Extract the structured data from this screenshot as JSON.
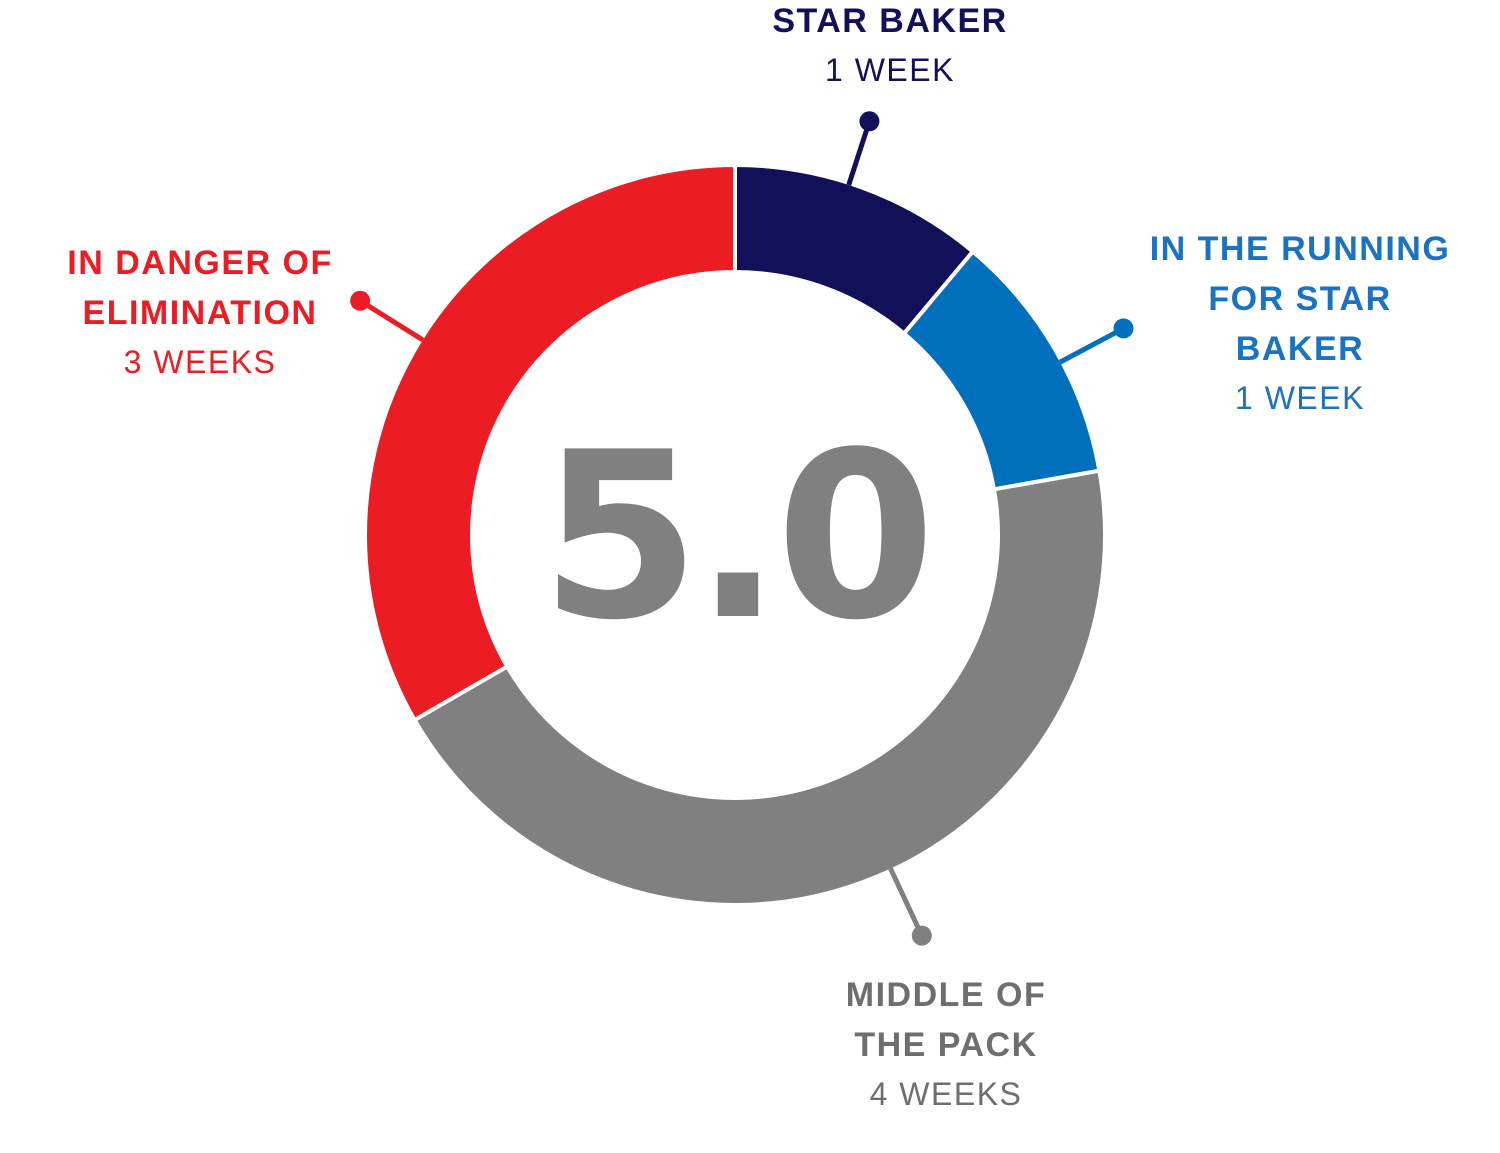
{
  "center": {
    "score": "5.0",
    "color": "#808080"
  },
  "chart_data": {
    "type": "pie",
    "variant": "donut",
    "total_weeks": 9,
    "categories": [
      "STAR BAKER",
      "IN THE RUNNING FOR STAR BAKER",
      "MIDDLE OF THE PACK",
      "IN DANGER OF ELIMINATION"
    ],
    "values": [
      1,
      1,
      4,
      3
    ],
    "value_labels": [
      "1 WEEK",
      "1 WEEK",
      "4 WEEKS",
      "3 WEEKS"
    ],
    "colors": [
      "#13105a",
      "#0070bd",
      "#808080",
      "#ec1c24"
    ]
  },
  "labels": {
    "star_baker": {
      "name": "STAR BAKER",
      "weeks": "1 WEEK"
    },
    "in_the_running": {
      "name_line1": "IN THE RUNNING",
      "name_line2": "FOR STAR BAKER",
      "weeks": "1 WEEK"
    },
    "middle_of_pack": {
      "name_line1": "MIDDLE OF",
      "name_line2": "THE PACK",
      "weeks": "4 WEEKS"
    },
    "in_danger": {
      "name_line1": "IN DANGER OF",
      "name_line2": "ELIMINATION",
      "weeks": "3 WEEKS"
    }
  }
}
